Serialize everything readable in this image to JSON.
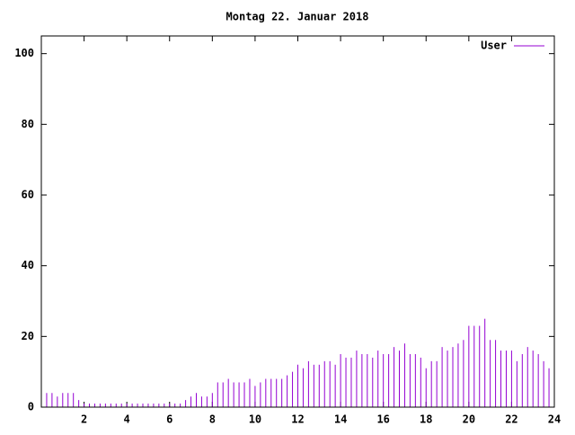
{
  "chart_data": {
    "type": "impulse",
    "title": "Montag 22. Januar 2018",
    "x": [
      0,
      0.25,
      0.5,
      0.75,
      1,
      1.25,
      1.5,
      1.75,
      2,
      2.25,
      2.5,
      2.75,
      3,
      3.25,
      3.5,
      3.75,
      4,
      4.25,
      4.5,
      4.75,
      5,
      5.25,
      5.5,
      5.75,
      6,
      6.25,
      6.5,
      6.75,
      7,
      7.25,
      7.5,
      7.75,
      8,
      8.25,
      8.5,
      8.75,
      9,
      9.25,
      9.5,
      9.75,
      10,
      10.25,
      10.5,
      10.75,
      11,
      11.25,
      11.5,
      11.75,
      12,
      12.25,
      12.5,
      12.75,
      13,
      13.25,
      13.5,
      13.75,
      14,
      14.25,
      14.5,
      14.75,
      15,
      15.25,
      15.5,
      15.75,
      16,
      16.25,
      16.5,
      16.75,
      17,
      17.25,
      17.5,
      17.75,
      18,
      18.25,
      18.5,
      18.75,
      19,
      19.25,
      19.5,
      19.75,
      20,
      20.25,
      20.5,
      20.75,
      21,
      21.25,
      21.5,
      21.75,
      22,
      22.25,
      22.5,
      22.75,
      23,
      23.25,
      23.5,
      23.75
    ],
    "series": [
      {
        "name": "User",
        "color": "#9400d3",
        "values": [
          5,
          4,
          4,
          3,
          4,
          4,
          4,
          2,
          1,
          1,
          1,
          1,
          1,
          1,
          1,
          1,
          1,
          1,
          1,
          1,
          1,
          1,
          1,
          1,
          1,
          1,
          1,
          2,
          3,
          4,
          3,
          3,
          4,
          7,
          7,
          8,
          7,
          7,
          7,
          8,
          6,
          7,
          8,
          8,
          8,
          8,
          9,
          10,
          12,
          11,
          13,
          12,
          12,
          13,
          13,
          12,
          15,
          14,
          14,
          16,
          15,
          15,
          14,
          16,
          15,
          15,
          17,
          16,
          18,
          15,
          15,
          14,
          11,
          13,
          13,
          17,
          16,
          17,
          18,
          19,
          23,
          23,
          23,
          25,
          19,
          19,
          16,
          16,
          16,
          13,
          15,
          17,
          16,
          15,
          13,
          11
        ]
      }
    ],
    "xlim": [
      0,
      24
    ],
    "xticks": [
      2,
      4,
      6,
      8,
      10,
      12,
      14,
      16,
      18,
      20,
      22,
      24
    ],
    "ylim": [
      0,
      105
    ],
    "yticks": [
      0,
      20,
      40,
      60,
      80,
      100
    ],
    "legend": "top-right"
  }
}
